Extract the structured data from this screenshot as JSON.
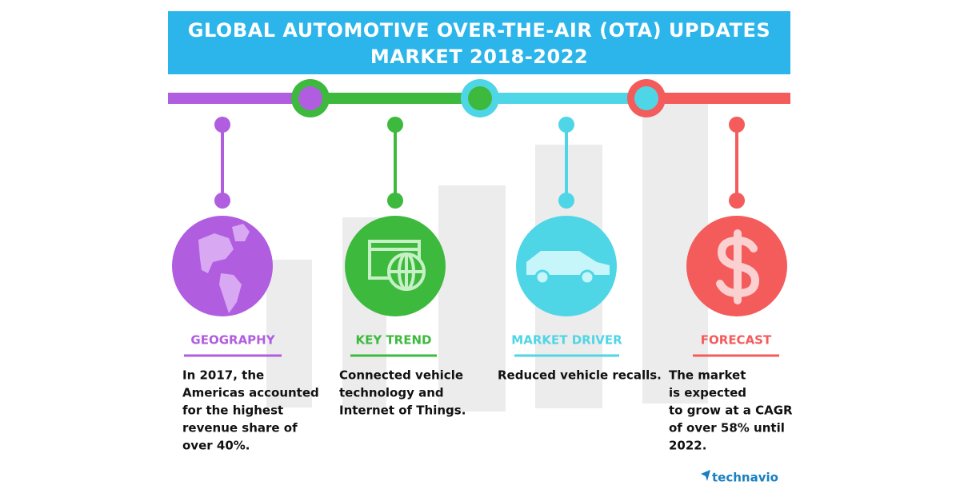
{
  "header": {
    "title_lines": [
      "GLOBAL AUTOMOTIVE OVER-THE-AIR (OTA) UPDATES",
      "MARKET 2018-2022"
    ]
  },
  "sections": [
    {
      "heading": "GEOGRAPHY",
      "body_lines": [
        "In 2017, the",
        "Americas accounted",
        "for the highest",
        "revenue share of",
        "over 40%."
      ]
    },
    {
      "heading": "KEY TREND",
      "body_lines": [
        "Connected vehicle",
        "technology and",
        "Internet of Things."
      ]
    },
    {
      "heading": "MARKET DRIVER",
      "body_lines": [
        "Reduced vehicle recalls."
      ]
    },
    {
      "heading": "FORECAST",
      "body_lines": [
        "The market",
        "is expected",
        "to grow at a CAGR",
        "of over 58% until",
        "2022."
      ]
    }
  ],
  "logo": "technavio"
}
